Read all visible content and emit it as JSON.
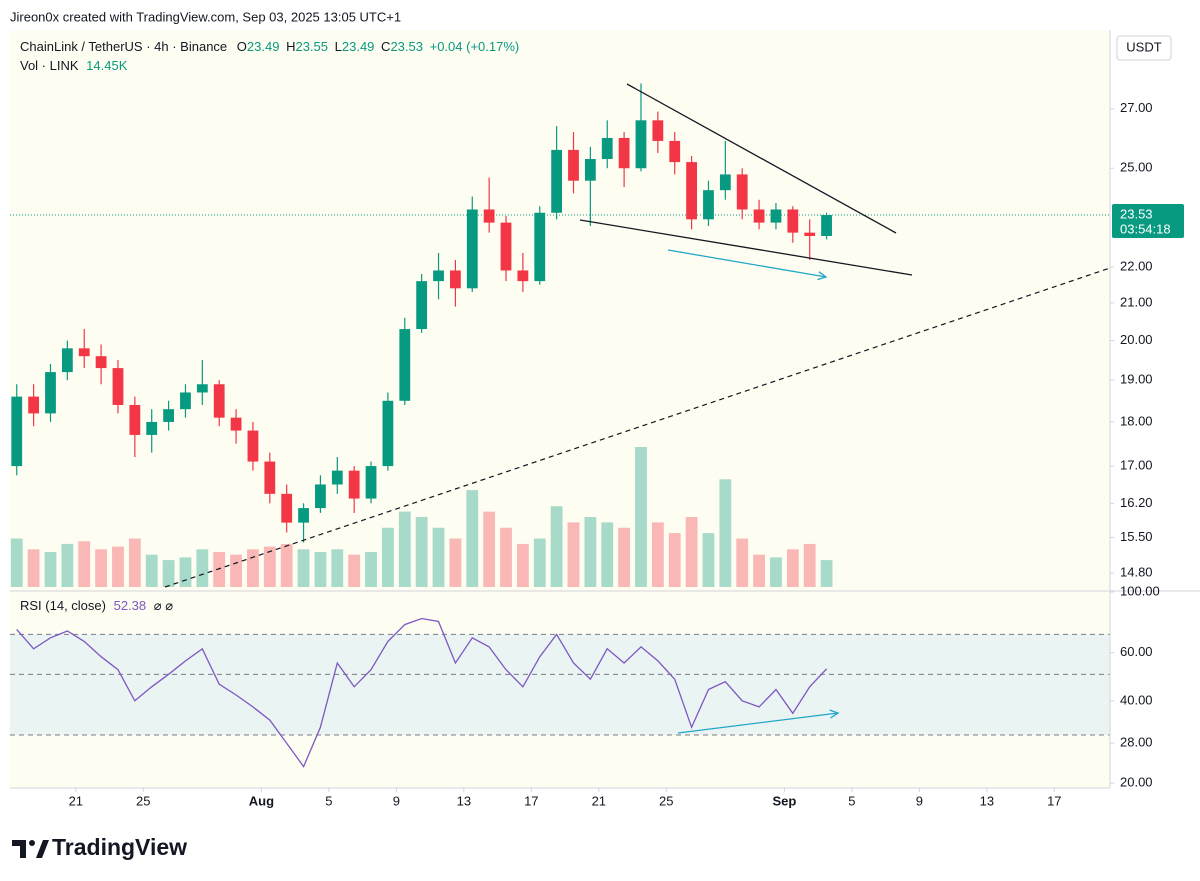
{
  "header": "Jireon0x created with TradingView.com, Sep 03, 2025 13:05 UTC+1",
  "footer_logo": "TradingView",
  "chart_data": {
    "type": "candlestick",
    "title": "ChainLink / TetherUS · 4h · Binance",
    "ohlc_labels": [
      "O",
      "H",
      "L",
      "C"
    ],
    "ohlc_values": [
      23.49,
      23.55,
      23.49,
      23.53
    ],
    "change": "+0.04 (+0.17%)",
    "volume_legend": "Vol · LINK",
    "volume_value": "14.45K",
    "rsi_legend": "RSI (14, close)",
    "rsi_icons": "⌀ ⌀",
    "currency": "USDT",
    "countdown": "03:54:18",
    "up_color": "#089981",
    "down_color": "#f23645",
    "rsi_color": "#7e57c2",
    "log_scale": true,
    "x": [
      -15,
      -14,
      -13,
      -12,
      -11,
      -10,
      -9,
      -8,
      -7,
      -6,
      -5,
      -4,
      -3,
      -2,
      -1,
      0,
      1,
      2,
      3,
      4,
      5,
      6,
      7,
      8,
      9,
      10,
      11,
      12,
      13,
      14,
      15,
      16,
      17,
      18,
      19,
      20,
      21,
      22,
      23,
      24,
      25,
      26,
      27,
      28,
      29,
      30,
      31,
      32,
      33
    ],
    "open": [
      17.0,
      18.6,
      18.2,
      19.2,
      19.8,
      19.6,
      19.3,
      18.4,
      17.7,
      18.0,
      18.3,
      18.7,
      18.9,
      18.1,
      17.8,
      17.1,
      16.4,
      15.8,
      16.1,
      16.6,
      16.9,
      16.3,
      17.0,
      18.5,
      20.3,
      21.6,
      21.9,
      21.4,
      23.7,
      23.3,
      21.9,
      21.6,
      23.6,
      25.6,
      24.6,
      25.3,
      26.0,
      25.0,
      26.6,
      25.9,
      25.2,
      23.4,
      24.3,
      24.8,
      23.7,
      23.3,
      23.7,
      23.0,
      22.9
    ],
    "high": [
      18.9,
      18.9,
      19.4,
      20.0,
      20.3,
      19.9,
      19.5,
      18.6,
      18.3,
      18.5,
      18.9,
      19.5,
      19.0,
      18.3,
      18.0,
      17.3,
      16.6,
      16.2,
      16.8,
      17.2,
      17.0,
      17.1,
      18.7,
      20.6,
      21.8,
      22.4,
      22.2,
      24.1,
      24.7,
      23.5,
      22.4,
      23.8,
      26.4,
      26.2,
      25.7,
      26.6,
      26.2,
      27.9,
      26.9,
      26.2,
      25.4,
      24.6,
      25.9,
      25.0,
      24.0,
      23.9,
      23.8,
      23.4,
      23.6
    ],
    "low": [
      16.8,
      17.9,
      18.0,
      19.0,
      19.3,
      18.9,
      18.2,
      17.2,
      17.3,
      17.8,
      18.1,
      18.4,
      17.9,
      17.5,
      16.9,
      16.2,
      15.6,
      15.4,
      16.0,
      16.4,
      16.0,
      16.2,
      16.9,
      18.4,
      20.2,
      21.1,
      20.9,
      21.3,
      23.0,
      21.6,
      21.3,
      21.5,
      23.4,
      24.2,
      23.2,
      25.0,
      24.4,
      24.9,
      25.5,
      24.8,
      23.1,
      23.2,
      24.0,
      23.4,
      23.1,
      23.1,
      22.7,
      22.2,
      22.8
    ],
    "close": [
      18.6,
      18.2,
      19.2,
      19.8,
      19.6,
      19.3,
      18.4,
      17.7,
      18.0,
      18.3,
      18.7,
      18.9,
      18.1,
      17.8,
      17.1,
      16.4,
      15.8,
      16.1,
      16.6,
      16.9,
      16.3,
      17.0,
      18.5,
      20.3,
      21.6,
      21.9,
      21.4,
      23.7,
      23.3,
      21.9,
      21.6,
      23.6,
      25.6,
      24.6,
      25.3,
      26.0,
      25.0,
      26.6,
      25.9,
      25.2,
      23.4,
      24.3,
      24.8,
      23.7,
      23.3,
      23.7,
      23.0,
      22.9,
      23.53
    ],
    "volume": [
      900,
      700,
      650,
      800,
      850,
      700,
      750,
      900,
      600,
      500,
      550,
      700,
      650,
      600,
      700,
      750,
      800,
      700,
      650,
      700,
      600,
      650,
      1100,
      1400,
      1300,
      1100,
      900,
      1800,
      1400,
      1100,
      800,
      900,
      1500,
      1200,
      1300,
      1200,
      1100,
      2600,
      1200,
      1000,
      1300,
      1000,
      2000,
      900,
      600,
      550,
      700,
      800,
      500
    ],
    "rsi": [
      73,
      62,
      68,
      72,
      66,
      58,
      52,
      40,
      45,
      50,
      56,
      62,
      46,
      42,
      38,
      34,
      28,
      23,
      32,
      55,
      45,
      52,
      66,
      76,
      80,
      78,
      55,
      68,
      63,
      52,
      45,
      58,
      70,
      55,
      48,
      62,
      55,
      63,
      56,
      48,
      32,
      44,
      47,
      40,
      38,
      44,
      36,
      45,
      52.38
    ],
    "xlim": [
      -14.9,
      50.3
    ],
    "xticks": [
      {
        "value": -11,
        "label": "21"
      },
      {
        "value": -7,
        "label": "25"
      },
      {
        "value": 0,
        "label": "Aug"
      },
      {
        "value": 4,
        "label": "5"
      },
      {
        "value": 8,
        "label": "9"
      },
      {
        "value": 12,
        "label": "13"
      },
      {
        "value": 16,
        "label": "17"
      },
      {
        "value": 20,
        "label": "21"
      },
      {
        "value": 24,
        "label": "25"
      },
      {
        "value": 31,
        "label": "Sep"
      },
      {
        "value": 35,
        "label": "5"
      },
      {
        "value": 39,
        "label": "9"
      },
      {
        "value": 43,
        "label": "13"
      },
      {
        "value": 47,
        "label": "17"
      }
    ],
    "ylim": [
      14.48,
      29.9
    ],
    "yticks": [
      {
        "value": 14.8,
        "label": "14.80"
      },
      {
        "value": 15.5,
        "label": "15.50"
      },
      {
        "value": 16.2,
        "label": "16.20"
      },
      {
        "value": 17,
        "label": "17.00"
      },
      {
        "value": 18,
        "label": "18.00"
      },
      {
        "value": 19,
        "label": "19.00"
      },
      {
        "value": 20,
        "label": "20.00"
      },
      {
        "value": 21,
        "label": "21.00"
      },
      {
        "value": 22,
        "label": "22.00"
      },
      {
        "value": 25,
        "label": "25.00"
      },
      {
        "value": 27,
        "label": "27.00"
      }
    ],
    "rsi_ylim": [
      19.2,
      100
    ],
    "rsi_yticks": [
      {
        "value": 20,
        "label": "20.00"
      },
      {
        "value": 28,
        "label": "28.00"
      },
      {
        "value": 40,
        "label": "40.00"
      },
      {
        "value": 60,
        "label": "60.00"
      },
      {
        "value": 100,
        "label": "100.00"
      }
    ],
    "rsi_bands": [
      70,
      50,
      30
    ]
  }
}
